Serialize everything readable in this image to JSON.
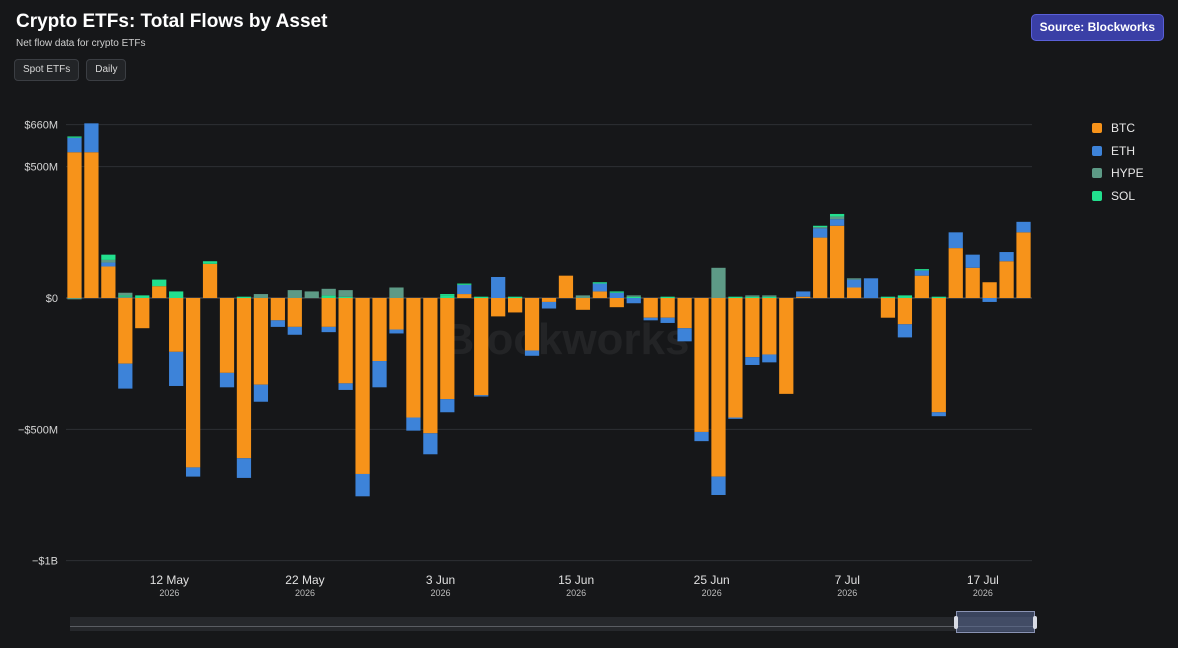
{
  "header": {
    "title": "Crypto ETFs: Total Flows by Asset",
    "subtitle": "Net flow data for crypto ETFs",
    "source_label": "Source: Blockworks"
  },
  "filters": [
    {
      "label": "Spot ETFs"
    },
    {
      "label": "Daily"
    }
  ],
  "watermark": "Blockworks",
  "colors": {
    "background": "#161719",
    "grid": "#2e3033",
    "BTC": "#f7931a",
    "ETH": "#3d83d9",
    "HYPE": "#5d9a86",
    "SOL": "#22e08e",
    "source_button": "#3a3fa6"
  },
  "legend": {
    "placement": "right",
    "items": [
      {
        "name": "BTC",
        "color": "#f7931a"
      },
      {
        "name": "ETH",
        "color": "#3d83d9"
      },
      {
        "name": "HYPE",
        "color": "#5d9a86"
      },
      {
        "name": "SOL",
        "color": "#22e08e"
      }
    ]
  },
  "chart_data": {
    "type": "bar",
    "stacked": true,
    "title": "Crypto ETFs: Total Flows by Asset",
    "ylim": [
      -1000,
      660
    ],
    "y_ticks": [
      {
        "value": 660,
        "label": "$660M"
      },
      {
        "value": 500,
        "label": "$500M"
      },
      {
        "value": 0,
        "label": "$0"
      },
      {
        "value": -500,
        "label": "−$500M"
      },
      {
        "value": -1000,
        "label": "−$1B"
      }
    ],
    "x_ticks": [
      {
        "index": 5,
        "label": "12 May",
        "year": "2026"
      },
      {
        "index": 13,
        "label": "22 May",
        "year": "2026"
      },
      {
        "index": 21,
        "label": "3 Jun",
        "year": "2026"
      },
      {
        "index": 29,
        "label": "15 Jun",
        "year": "2026"
      },
      {
        "index": 37,
        "label": "25 Jun",
        "year": "2026"
      },
      {
        "index": 45,
        "label": "7 Jul",
        "year": "2026"
      },
      {
        "index": 53,
        "label": "17 Jul",
        "year": "2026"
      }
    ],
    "series": [
      {
        "name": "BTC",
        "values": [
          555,
          555,
          120,
          -250,
          -115,
          45,
          -205,
          -645,
          130,
          -285,
          -610,
          -330,
          -85,
          -110,
          0,
          -110,
          -325,
          -670,
          -240,
          -120,
          -455,
          -515,
          -385,
          15,
          -370,
          -70,
          -55,
          -200,
          -15,
          85,
          -45,
          25,
          -35,
          0,
          -75,
          -75,
          -115,
          -510,
          -680,
          -455,
          -225,
          -215,
          -365,
          5,
          230,
          275,
          40,
          0,
          -75,
          -100,
          85,
          -435,
          190,
          115,
          60,
          140,
          250
        ]
      },
      {
        "name": "ETH",
        "values": [
          55,
          110,
          15,
          -95,
          0,
          0,
          -130,
          -35,
          0,
          -55,
          -75,
          -65,
          -25,
          -30,
          0,
          -20,
          -25,
          -85,
          -100,
          -15,
          -50,
          -80,
          -50,
          35,
          -5,
          80,
          0,
          -20,
          -25,
          0,
          0,
          30,
          20,
          -20,
          -10,
          -20,
          -50,
          -35,
          -70,
          -5,
          -30,
          -30,
          0,
          20,
          35,
          25,
          30,
          75,
          0,
          -50,
          20,
          -15,
          60,
          50,
          -15,
          35,
          40
        ]
      },
      {
        "name": "HYPE",
        "values": [
          0,
          0,
          10,
          5,
          0,
          0,
          0,
          0,
          0,
          0,
          0,
          0,
          0,
          0,
          25,
          0,
          0,
          0,
          0,
          0,
          0,
          0,
          0,
          0,
          0,
          0,
          0,
          0,
          0,
          0,
          10,
          0,
          0,
          0,
          0,
          0,
          0,
          0,
          0,
          0,
          0,
          0,
          0,
          0,
          5,
          10,
          5,
          0,
          0,
          0,
          0,
          0,
          0,
          0,
          0,
          0,
          0
        ]
      },
      {
        "name": "SOL",
        "values": [
          5,
          0,
          20,
          5,
          10,
          25,
          25,
          0,
          10,
          0,
          5,
          0,
          0,
          0,
          0,
          10,
          5,
          0,
          0,
          0,
          0,
          0,
          10,
          5,
          5,
          0,
          5,
          0,
          0,
          0,
          0,
          5,
          5,
          5,
          0,
          5,
          0,
          0,
          0,
          5,
          5,
          5,
          0,
          0,
          5,
          10,
          0,
          0,
          5,
          10,
          5,
          5,
          0,
          0,
          0,
          0,
          0
        ]
      },
      {
        "name": "HYPE (neg)",
        "hidden_from_legend": true,
        "values": [
          -5,
          0,
          0,
          0,
          0,
          0,
          0,
          0,
          0,
          0,
          0,
          0,
          0,
          0,
          0,
          0,
          0,
          0,
          0,
          0,
          0,
          0,
          0,
          0,
          0,
          0,
          0,
          0,
          0,
          0,
          0,
          0,
          0,
          0,
          0,
          0,
          0,
          0,
          0,
          0,
          0,
          0,
          0,
          0,
          0,
          0,
          0,
          0,
          0,
          0,
          0,
          0,
          0,
          0,
          0,
          0,
          0
        ]
      }
    ],
    "extra_positive": {
      "HYPE": {
        "3": 10,
        "11": 15,
        "13": 30,
        "15": 25,
        "16": 25,
        "19": 40,
        "33": 5,
        "38": 115,
        "40": 5,
        "41": 5
      },
      "SOL": {
        "22": 5
      },
      "BTC": {
        "3": 0
      }
    },
    "grid": true,
    "legend_position": "right"
  }
}
